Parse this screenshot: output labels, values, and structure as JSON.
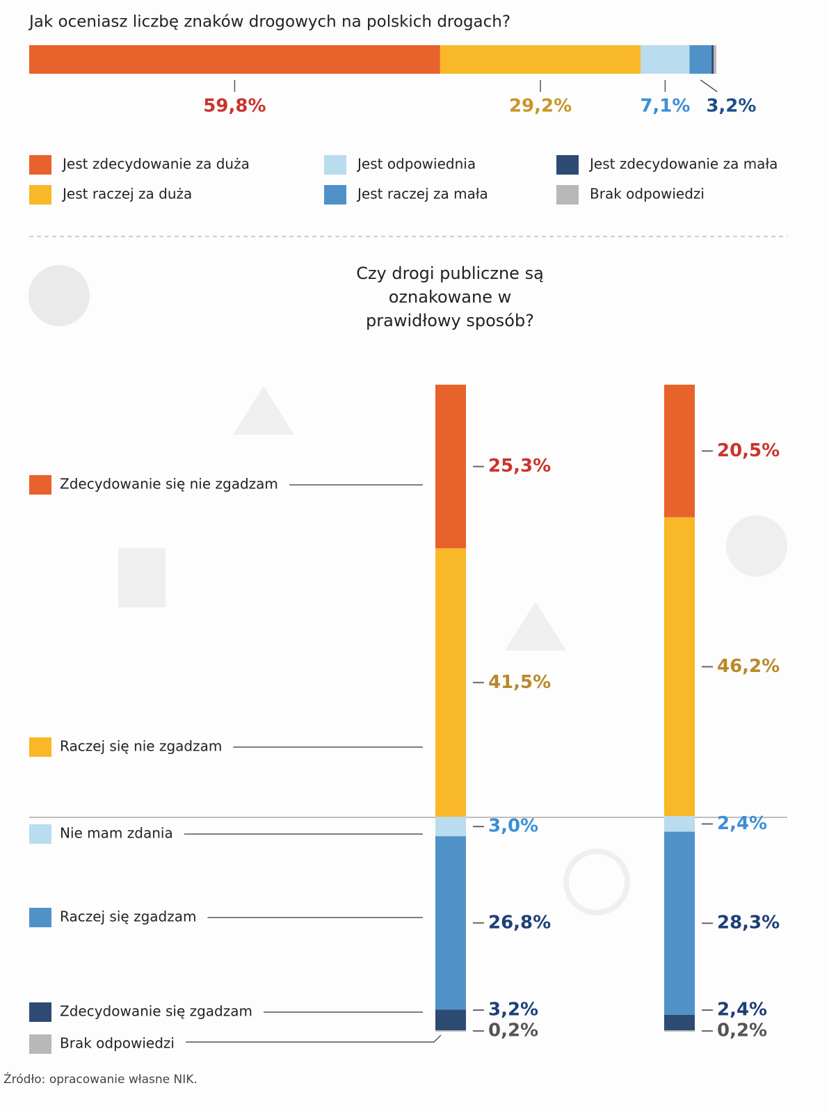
{
  "chart_data": [
    {
      "type": "stacked-bar",
      "title": "Jak oceniasz liczbę znaków drogowych na polskich drogach?",
      "series": [
        {
          "name": "Jest zdecydowanie za duża",
          "color": "#e8622c",
          "label_color": "#c9342c",
          "values": [
            59.8
          ],
          "value_labels": [
            "59,8%"
          ]
        },
        {
          "name": "Jest raczej za duża",
          "color": "#f8b828",
          "label_color": "#c8962a",
          "values": [
            29.2
          ],
          "value_labels": [
            "29,2%"
          ]
        },
        {
          "name": "Jest odpowiednia",
          "color": "#b9dcee",
          "label_color": "#3a8fd9",
          "values": [
            7.1
          ],
          "value_labels": [
            "7,1%"
          ]
        },
        {
          "name": "Jest raczej za mała",
          "color": "#5092c8",
          "label_color": "#1f4e8c",
          "values": [
            3.2
          ],
          "value_labels": [
            "3,2%"
          ]
        },
        {
          "name": "Jest zdecydowanie za mała",
          "color": "#2d4a72",
          "values": [
            0.3
          ]
        },
        {
          "name": "Brak odpowiedzi",
          "color": "#b8b8b8",
          "values": [
            0.4
          ]
        }
      ]
    },
    {
      "type": "stacked-column",
      "title": "Czy drogi publiczne są oznakowane w prawidłowy sposób?",
      "categories": [
        null,
        null
      ],
      "series": [
        {
          "name": "Zdecydowanie się nie zgadzam",
          "color": "#e8622c",
          "label_color": "#c9342c",
          "values": [
            25.3,
            20.5
          ],
          "value_labels": [
            "25,3%",
            "20,5%"
          ]
        },
        {
          "name": "Raczej się nie zgadzam",
          "color": "#f8b828",
          "label_color": "#b8892a",
          "values": [
            41.5,
            46.2
          ],
          "value_labels": [
            "41,5%",
            "46,2%"
          ]
        },
        {
          "name": "Nie mam zdania",
          "color": "#b9dcee",
          "label_color": "#3a8fd9",
          "values": [
            3.0,
            2.4
          ],
          "value_labels": [
            "3,0%",
            "2,4%"
          ]
        },
        {
          "name": "Raczej się zgadzam",
          "color": "#5092c8",
          "label_color": "#1f3f78",
          "values": [
            26.8,
            28.3
          ],
          "value_labels": [
            "26,8%",
            "28,3%"
          ]
        },
        {
          "name": "Zdecydowanie  się zgadzam",
          "color": "#2d4a72",
          "label_color": "#1f3f78",
          "values": [
            3.2,
            2.4
          ],
          "value_labels": [
            "3,2%",
            "2,4%"
          ]
        },
        {
          "name": "Brak odpowiedzi",
          "color": "#b8b8b8",
          "label_color": "#555555",
          "values": [
            0.2,
            0.2
          ],
          "value_labels": [
            "0,2%",
            "0,2%"
          ]
        }
      ]
    }
  ],
  "source": "Źródło: opracowanie własne NIK."
}
